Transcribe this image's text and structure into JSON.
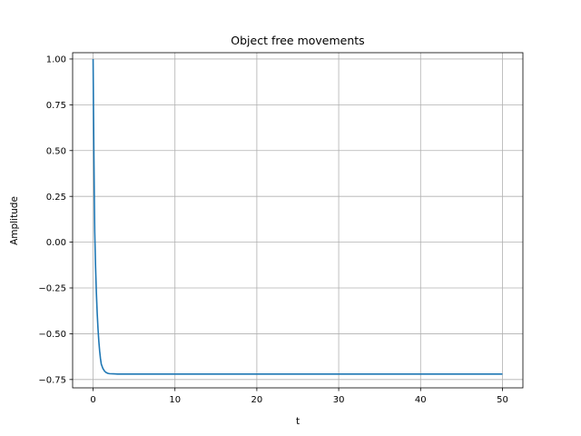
{
  "chart_data": {
    "type": "line",
    "title": "Object free movements",
    "xlabel": "t",
    "ylabel": "Amplitude",
    "xlim": [
      -2.5,
      52.5
    ],
    "ylim": [
      -0.7955,
      1.0345
    ],
    "grid": true,
    "x_ticks": [
      0,
      10,
      20,
      30,
      40,
      50
    ],
    "x_tick_labels": [
      "0",
      "10",
      "20",
      "30",
      "40",
      "50"
    ],
    "y_ticks": [
      1.0,
      0.75,
      0.5,
      0.25,
      0.0,
      -0.25,
      -0.5,
      -0.75
    ],
    "y_tick_labels": [
      "1.00",
      "0.75",
      "0.50",
      "0.25",
      "0.00",
      "−0.25",
      "−0.50",
      "−0.75"
    ],
    "series": [
      {
        "color": "#1f77b4",
        "x": [
          0,
          0.05,
          0.1,
          0.15,
          0.2,
          0.3,
          0.4,
          0.5,
          0.6,
          0.7,
          0.8,
          0.9,
          1.0,
          1.2,
          1.4,
          1.6,
          1.8,
          2.0,
          2.5,
          3.0,
          4.0,
          5.0,
          10,
          15,
          20,
          25,
          30,
          35,
          40,
          45,
          50
        ],
        "y": [
          1.0,
          0.718,
          0.469,
          0.25,
          0.057,
          -0.13,
          -0.274,
          -0.386,
          -0.473,
          -0.541,
          -0.594,
          -0.635,
          -0.666,
          -0.69,
          -0.704,
          -0.712,
          -0.716,
          -0.718,
          -0.719,
          -0.72,
          -0.72,
          -0.72,
          -0.72,
          -0.72,
          -0.72,
          -0.72,
          -0.72,
          -0.72,
          -0.72,
          -0.72,
          -0.72
        ]
      }
    ]
  }
}
